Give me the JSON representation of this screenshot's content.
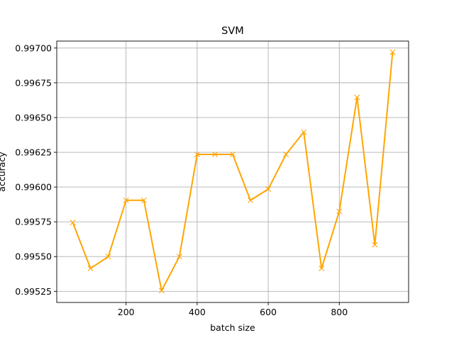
{
  "chart_data": {
    "type": "line",
    "title": "SVM",
    "xlabel": "batch size",
    "ylabel": "accuracy",
    "xlim": [
      5,
      995
    ],
    "ylim": [
      0.99517,
      0.99705
    ],
    "xticks": [
      200,
      400,
      600,
      800
    ],
    "xtick_labels": [
      "200",
      "400",
      "600",
      "800"
    ],
    "yticks": [
      0.99525,
      0.9955,
      0.99575,
      0.996,
      0.99625,
      0.9965,
      0.99675,
      0.997
    ],
    "ytick_labels": [
      "0.99525",
      "0.99550",
      "0.99575",
      "0.99600",
      "0.99625",
      "0.99650",
      "0.99675",
      "0.99700"
    ],
    "grid": true,
    "series": [
      {
        "color": "#ffa500",
        "marker": "x",
        "x": [
          50,
          100,
          150,
          200,
          250,
          300,
          350,
          400,
          450,
          500,
          550,
          600,
          650,
          700,
          750,
          800,
          850,
          900,
          950
        ],
        "y": [
          0.995745,
          0.995415,
          0.9955,
          0.995905,
          0.995905,
          0.995255,
          0.9955,
          0.996235,
          0.996235,
          0.996235,
          0.995905,
          0.995985,
          0.996235,
          0.996395,
          0.995415,
          0.995825,
          0.996645,
          0.995585,
          0.99697
        ]
      }
    ]
  }
}
